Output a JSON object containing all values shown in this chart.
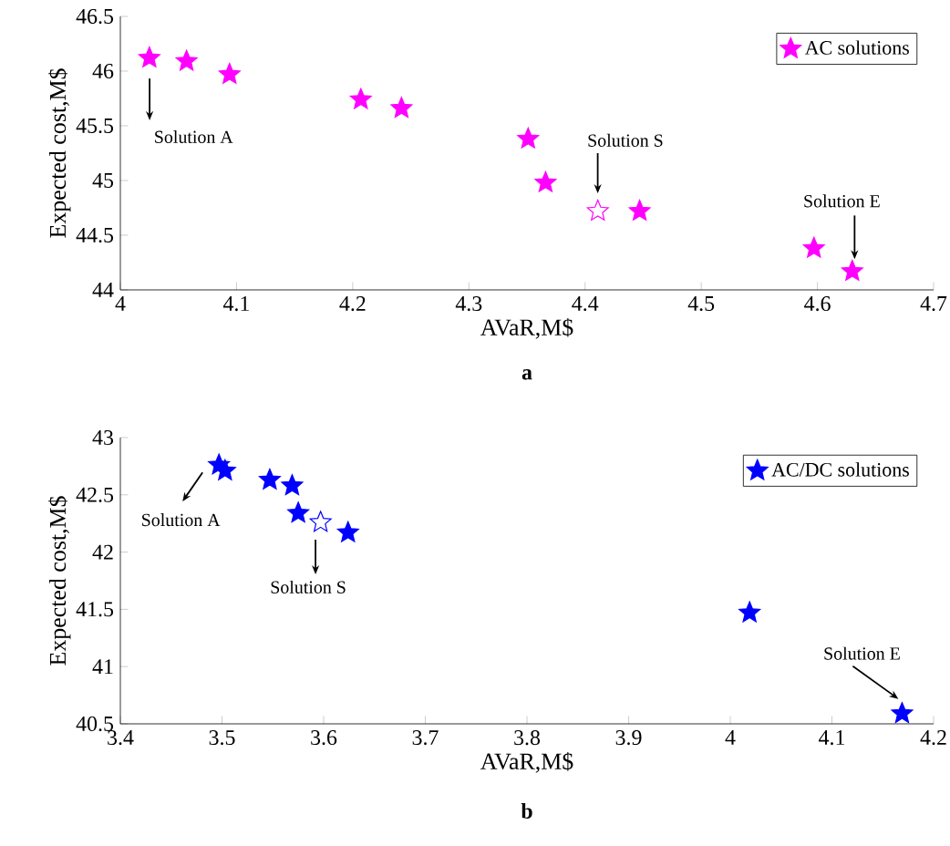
{
  "chart_data": [
    {
      "type": "scatter",
      "title": "a",
      "xlabel": "AVaR,M$",
      "ylabel": "Expected cost,M$",
      "xlim": [
        4,
        4.7
      ],
      "xticks": [
        4,
        4.1,
        4.2,
        4.3,
        4.4,
        4.5,
        4.6,
        4.7
      ],
      "ylim": [
        44,
        46.5
      ],
      "yticks": [
        44,
        44.5,
        45,
        45.5,
        46,
        46.5
      ],
      "marker": "star",
      "legend": "top right",
      "grid": false,
      "series": [
        {
          "name": "AC solutions",
          "color": "#ff00ff",
          "x": [
            4.025,
            4.057,
            4.094,
            4.207,
            4.242,
            4.351,
            4.366,
            4.447,
            4.597,
            4.63
          ],
          "values": [
            46.12,
            46.09,
            45.97,
            45.74,
            45.66,
            45.38,
            44.98,
            44.72,
            44.38,
            44.17
          ]
        },
        {
          "color": "#ffffff",
          "x": [
            4.411
          ],
          "values": [
            44.72
          ]
        }
      ],
      "annotations": [
        "Solution A",
        "Solution S",
        {
          "text": "Solution E",
          "x": 4.632,
          "y": 44.28
        }
      ]
    },
    {
      "type": "scatter",
      "title": "b",
      "xlabel": "AVaR,M$",
      "ylabel": "Expected cost,M$",
      "xlim": [
        3.4,
        4.2
      ],
      "xticks": [
        3.4,
        3.5,
        3.6,
        3.7,
        3.8,
        3.9,
        4,
        4.1,
        4.2
      ],
      "ylim": [
        40.5,
        43
      ],
      "yticks": [
        40.5,
        41,
        41.5,
        42,
        42.5,
        43
      ],
      "marker": "star",
      "legend": "top right",
      "grid": false,
      "series": [
        {
          "name": "AC/DC solutions",
          "color": "#0000ff",
          "x": [
            3.497,
            3.503,
            3.547,
            3.569,
            3.575,
            3.624,
            4.019,
            4.169
          ],
          "values": [
            42.76,
            42.71,
            42.63,
            42.58,
            42.34,
            42.17,
            41.47,
            40.59
          ]
        },
        {
          "color": "#ffffff",
          "x": [
            3.597
          ],
          "values": [
            42.26
          ]
        }
      ],
      "annotations": [
        {
          "text": "Solution A",
          "x": 3.497,
          "y": 42.76
        },
        "Solution S",
        {
          "text": "Solution E",
          "x": 4.169,
          "y": 40.59
        }
      ]
    }
  ]
}
